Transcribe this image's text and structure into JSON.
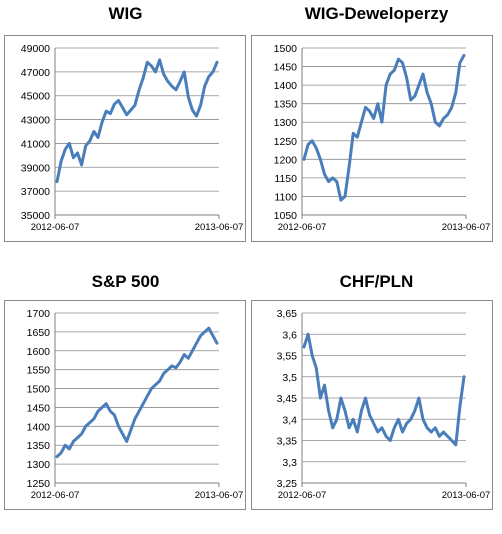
{
  "chart_data": [
    {
      "type": "line",
      "title": "WIG",
      "x_labels": [
        "2012-06-07",
        "2013-06-07"
      ],
      "y_ticks": [
        "49000",
        "47000",
        "45000",
        "43000",
        "41000",
        "39000",
        "37000",
        "35000"
      ],
      "ylim": [
        35000,
        49000
      ],
      "grid": true,
      "color": "#4a7ebb",
      "series": [
        {
          "values": [
            37800,
            39500,
            40500,
            41000,
            39800,
            40200,
            39200,
            40800,
            41200,
            42000,
            41500,
            42800,
            43700,
            43500,
            44300,
            44600,
            44000,
            43400,
            43800,
            44200,
            45500,
            46500,
            47800,
            47500,
            47000,
            48000,
            46800,
            46200,
            45800,
            45500,
            46200,
            47000,
            44900,
            43800,
            43300,
            44200,
            45800,
            46600,
            47000,
            47800
          ]
        }
      ]
    },
    {
      "type": "line",
      "title": "WIG-Deweloperzy",
      "x_labels": [
        "2012-06-07",
        "2013-06-07"
      ],
      "y_ticks": [
        "1500",
        "1450",
        "1400",
        "1350",
        "1300",
        "1250",
        "1200",
        "1150",
        "1100",
        "1050"
      ],
      "ylim": [
        1050,
        1500
      ],
      "grid": true,
      "color": "#4a7ebb",
      "series": [
        {
          "values": [
            1200,
            1240,
            1250,
            1230,
            1200,
            1160,
            1140,
            1150,
            1140,
            1090,
            1100,
            1180,
            1270,
            1260,
            1300,
            1340,
            1330,
            1310,
            1350,
            1300,
            1400,
            1430,
            1440,
            1470,
            1460,
            1420,
            1360,
            1370,
            1400,
            1430,
            1380,
            1350,
            1300,
            1290,
            1310,
            1320,
            1340,
            1380,
            1460,
            1480
          ]
        }
      ]
    },
    {
      "type": "line",
      "title": "S&P 500",
      "x_labels": [
        "2012-06-07",
        "2013-06-07"
      ],
      "y_ticks": [
        "1700",
        "1650",
        "1600",
        "1550",
        "1500",
        "1450",
        "1400",
        "1350",
        "1300",
        "1250"
      ],
      "ylim": [
        1250,
        1700
      ],
      "grid": true,
      "color": "#4a7ebb",
      "series": [
        {
          "values": [
            1320,
            1330,
            1350,
            1340,
            1360,
            1370,
            1380,
            1400,
            1410,
            1420,
            1440,
            1450,
            1460,
            1440,
            1430,
            1400,
            1380,
            1360,
            1390,
            1420,
            1440,
            1460,
            1480,
            1500,
            1510,
            1520,
            1540,
            1550,
            1560,
            1555,
            1570,
            1590,
            1580,
            1600,
            1620,
            1640,
            1650,
            1660,
            1640,
            1620
          ]
        }
      ]
    },
    {
      "type": "line",
      "title": "CHF/PLN",
      "x_labels": [
        "2012-06-07",
        "2013-06-07"
      ],
      "y_ticks": [
        "3,65",
        "3,6",
        "3,55",
        "3,5",
        "3,45",
        "3,4",
        "3,35",
        "3,3",
        "3,25"
      ],
      "ylim": [
        3.25,
        3.65
      ],
      "grid": true,
      "color": "#4a7ebb",
      "series": [
        {
          "values": [
            3.57,
            3.6,
            3.55,
            3.52,
            3.45,
            3.48,
            3.42,
            3.38,
            3.4,
            3.45,
            3.42,
            3.38,
            3.4,
            3.37,
            3.42,
            3.45,
            3.41,
            3.39,
            3.37,
            3.38,
            3.36,
            3.35,
            3.38,
            3.4,
            3.37,
            3.39,
            3.4,
            3.42,
            3.45,
            3.4,
            3.38,
            3.37,
            3.38,
            3.36,
            3.37,
            3.36,
            3.35,
            3.34,
            3.43,
            3.5
          ]
        }
      ]
    }
  ]
}
